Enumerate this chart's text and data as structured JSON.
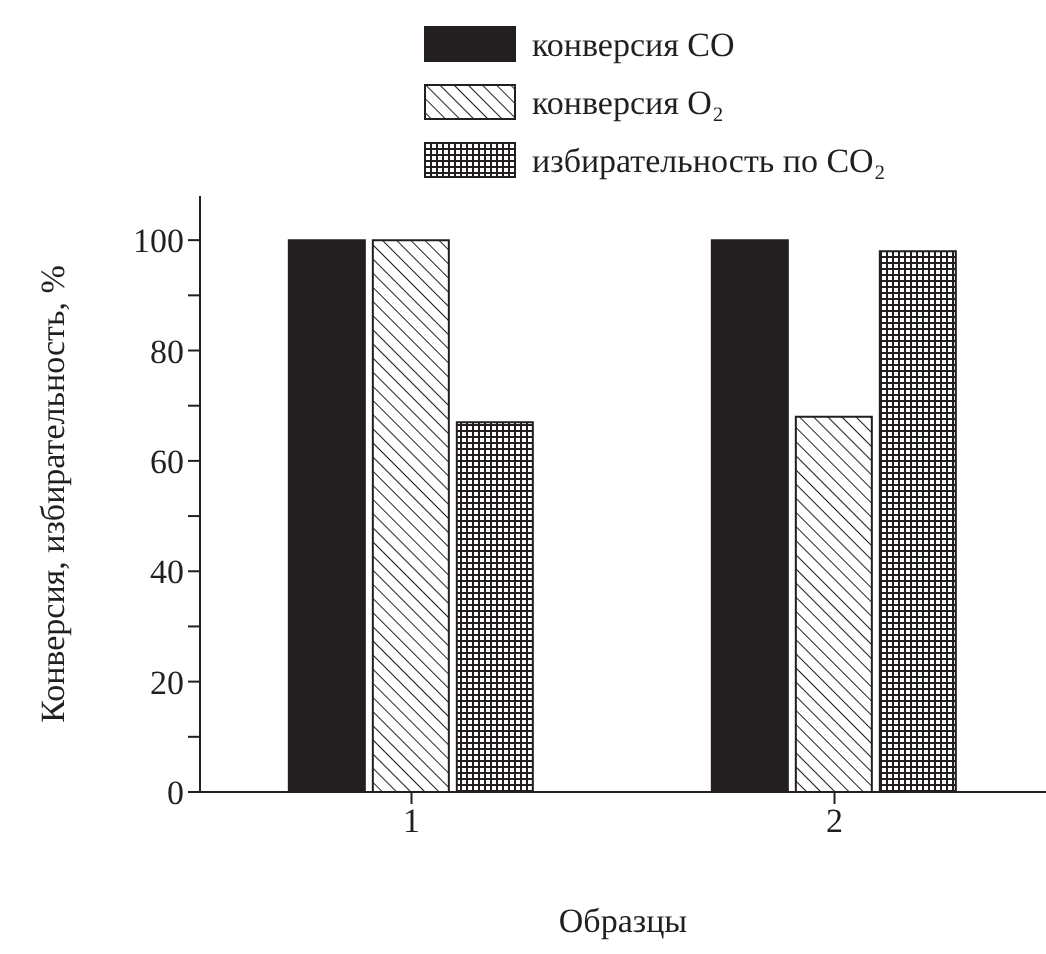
{
  "chart_data": {
    "type": "bar",
    "xlabel": "Образцы",
    "ylabel": "Конверсия, избирательность, %",
    "categories": [
      "1",
      "2"
    ],
    "series": [
      {
        "name": "конверсия CO",
        "color": "#231f20",
        "values": [
          100,
          100
        ]
      },
      {
        "name": "конверсия O₂",
        "color": "#231f20",
        "values": [
          100,
          68
        ]
      },
      {
        "name": "избирательность по CO₂",
        "color": "#231f20",
        "values": [
          67,
          98
        ]
      }
    ],
    "ylim": [
      0,
      108
    ],
    "yticks": [
      0,
      {
        "value": 10,
        "label": null
      },
      20,
      {
        "value": 30,
        "label": null
      },
      40,
      {
        "value": 50,
        "label": null
      },
      60,
      {
        "value": 70,
        "label": null
      },
      80,
      {
        "value": 90,
        "label": null
      },
      100
    ],
    "legend": "top"
  }
}
